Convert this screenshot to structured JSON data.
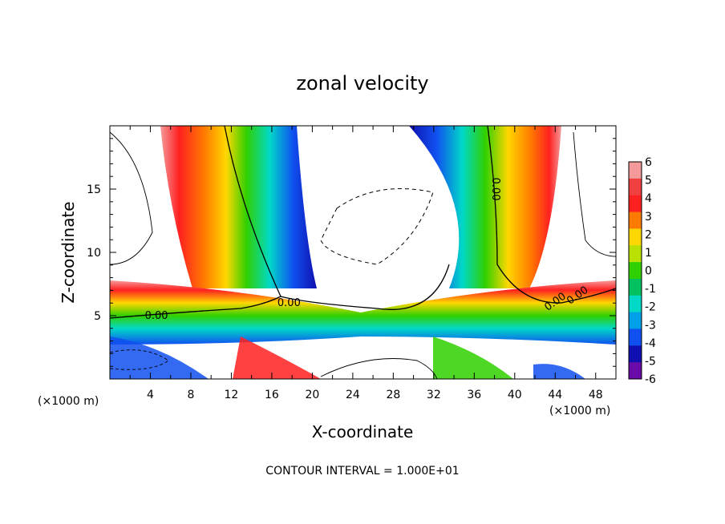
{
  "chart_data": {
    "type": "heatmap",
    "title": "zonal velocity",
    "xlabel": "X-coordinate",
    "ylabel": "Z-coordinate",
    "x_unit_label": "(×1000 m)",
    "x_unit_label_right": "(×1000 m)",
    "footer": "CONTOUR INTERVAL = 1.000E+01",
    "xlim": [
      0,
      50
    ],
    "ylim": [
      0,
      20
    ],
    "x_ticks": [
      "4",
      "8",
      "12",
      "16",
      "20",
      "24",
      "28",
      "32",
      "36",
      "40",
      "44",
      "48"
    ],
    "y_ticks": [
      "5",
      "10",
      "15"
    ],
    "contour_labels": [
      "0.00",
      "0.00",
      "0.00",
      "0.00",
      "0.00"
    ],
    "colorbar": {
      "levels": [
        "6",
        "5",
        "4",
        "3",
        "2",
        "1",
        "0",
        "-1",
        "-2",
        "-3",
        "-4",
        "-5",
        "-6"
      ],
      "colors": [
        "#f59a9a",
        "#f04040",
        "#ff2020",
        "#ff7a00",
        "#ffd700",
        "#b8e000",
        "#30d000",
        "#00c060",
        "#00d8c8",
        "#00a0e8",
        "#1050f0",
        "#1010b0",
        "#6a0aa8"
      ]
    }
  }
}
